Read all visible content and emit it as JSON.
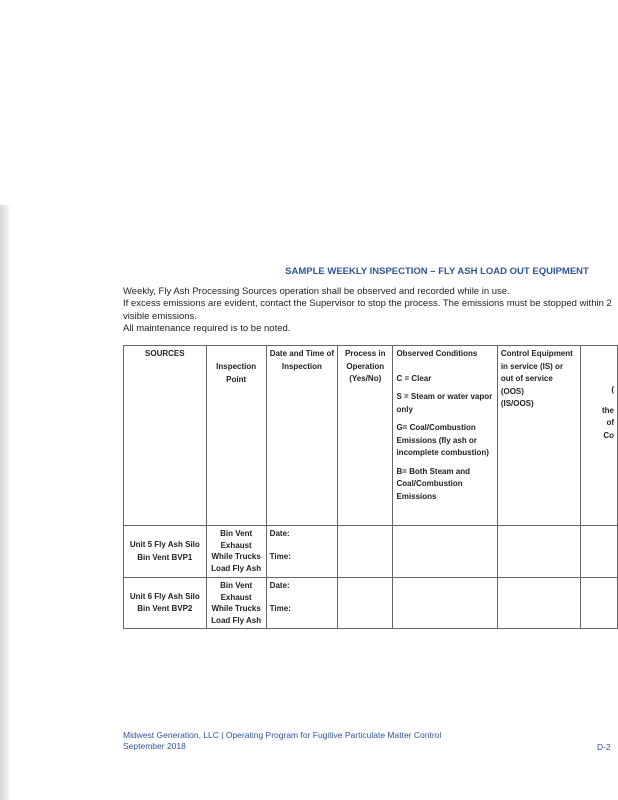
{
  "header": {
    "title": "SAMPLE WEEKLY INSPECTION – FLY ASH LOAD OUT EQUIPMENT"
  },
  "intro": [
    "Weekly, Fly Ash Processing Sources operation shall be observed and recorded while in use.",
    "If excess emissions are evident, contact the Supervisor to stop the process. The emissions must be stopped within 2",
    "visible emissions.",
    "All maintenance required is to be noted."
  ],
  "table": {
    "columns": [
      [
        "SOURCES"
      ],
      [
        "Inspection Point"
      ],
      [
        "Date and Time of Inspection"
      ],
      [
        "Process in Operation (Yes/No)"
      ],
      [
        "Observed Conditions",
        "C = Clear",
        "S = Steam or water vapor only",
        "G= Coal/Combustion Emissions (fly ash or incomplete combustion)",
        "B= Both Steam and Coal/Combustion Emissions"
      ],
      [
        "Control Equipment in service (IS) or out of service (OOS)",
        "(IS/OOS)"
      ],
      [
        "(",
        "the",
        "of",
        "Co"
      ]
    ],
    "rows": [
      {
        "source": "Unit 5 Fly Ash Silo Bin Vent BVP1",
        "point": "Bin Vent Exhaust While Trucks Load Fly Ash",
        "date": "Date:",
        "time": "Time:"
      },
      {
        "source": "Unit 6 Fly Ash Silo Bin Vent BVP2",
        "point": "Bin Vent Exhaust While Trucks Load Fly Ash",
        "date": "Date:",
        "time": "Time:"
      }
    ]
  },
  "footer": {
    "line1": "Midwest Generation, LLC | Operating Program for Fugitive Particulate Matter Control",
    "line2": "September 2018",
    "page": "D-2"
  }
}
